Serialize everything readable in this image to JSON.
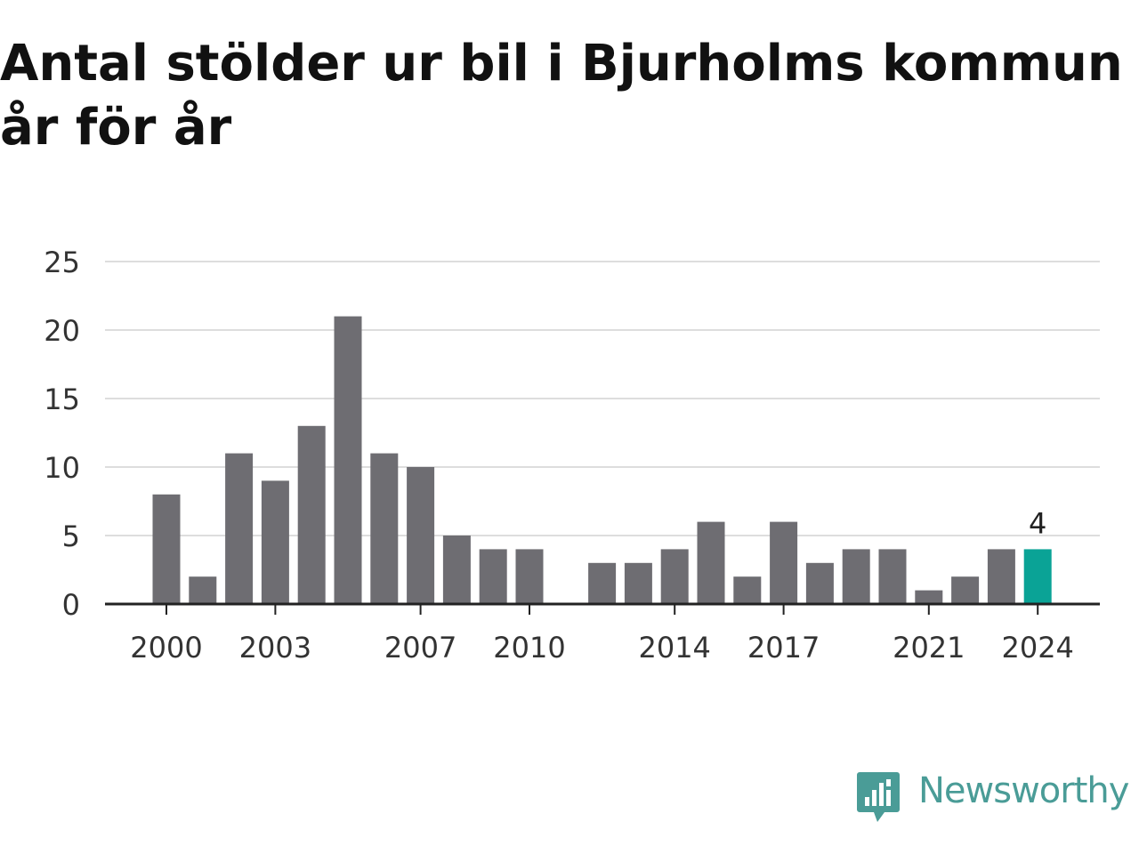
{
  "header": {
    "title_line1": "Antal stölder ur bil i Bjurholms kommun",
    "title_line2": "år för år"
  },
  "brand": {
    "name": "Newsworthy",
    "icon": "newsworthy-logo-icon",
    "color": "#4a9c97"
  },
  "colors": {
    "bar": "#6e6d72",
    "highlight": "#0aa396",
    "grid": "#dddddd",
    "axis": "#222222",
    "tick_text": "#333333"
  },
  "chart_data": {
    "type": "bar",
    "categories": [
      "2000",
      "2001",
      "2002",
      "2003",
      "2004",
      "2005",
      "2006",
      "2007",
      "2008",
      "2009",
      "2010",
      "2011",
      "2012",
      "2013",
      "2014",
      "2015",
      "2016",
      "2017",
      "2018",
      "2019",
      "2020",
      "2021",
      "2022",
      "2023",
      "2024"
    ],
    "values": [
      8,
      2,
      11,
      9,
      13,
      21,
      11,
      10,
      5,
      4,
      4,
      0,
      3,
      3,
      4,
      6,
      2,
      6,
      3,
      4,
      4,
      1,
      2,
      4,
      4
    ],
    "xticks": [
      "2000",
      "2003",
      "2007",
      "2010",
      "2014",
      "2017",
      "2021",
      "2024"
    ],
    "yticks": [
      0,
      5,
      10,
      15,
      20,
      25
    ],
    "ylim": [
      0,
      25
    ],
    "highlight_index": 24,
    "highlight_label": "4",
    "grid": true,
    "xlabel": "",
    "ylabel": ""
  }
}
